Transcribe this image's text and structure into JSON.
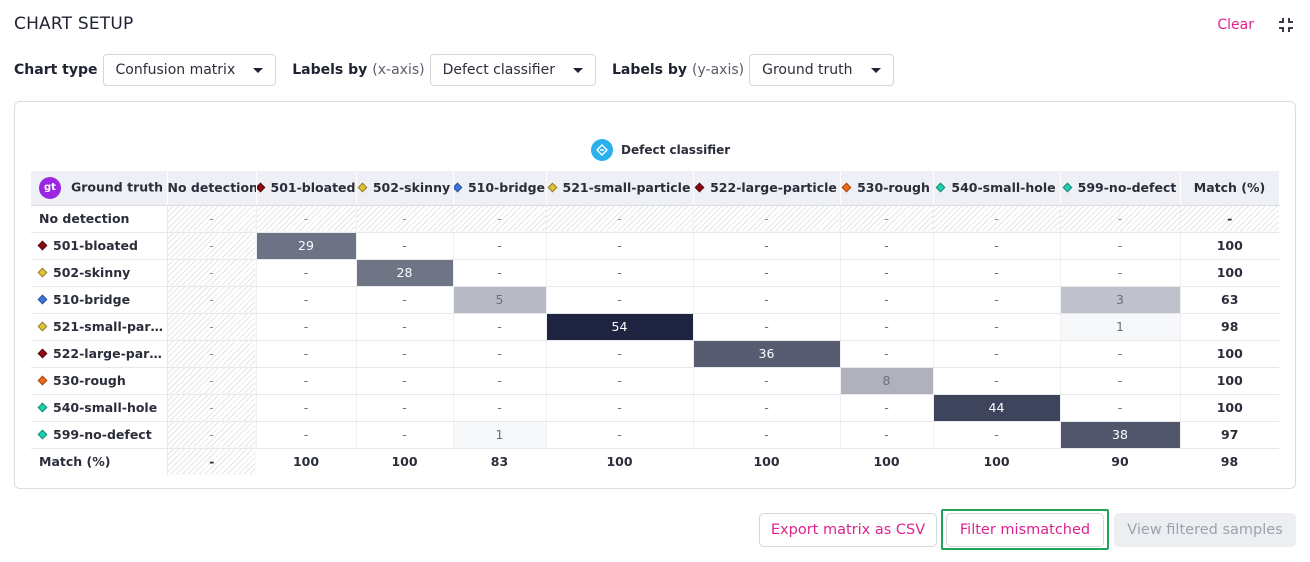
{
  "header": {
    "title": "CHART SETUP",
    "clear_label": "Clear"
  },
  "setup": {
    "chart_type_label": "Chart type",
    "chart_type_value": "Confusion matrix",
    "x_label": "Labels by",
    "x_sub": "(x-axis)",
    "x_value": "Defect classifier",
    "y_label": "Labels by",
    "y_sub": "(y-axis)",
    "y_value": "Ground truth"
  },
  "matrix": {
    "x_axis_title": "Defect classifier",
    "y_axis_badge": "gt",
    "y_axis_title": "Ground truth",
    "columns": [
      {
        "label": "No detection",
        "color": ""
      },
      {
        "label": "501-bloated",
        "color": "#8b0a14"
      },
      {
        "label": "502-skinny",
        "color": "#e0c23a"
      },
      {
        "label": "510-bridge",
        "color": "#3f74e3"
      },
      {
        "label": "521-small-particle",
        "color": "#e0c23a"
      },
      {
        "label": "522-large-particle",
        "color": "#8b0a14"
      },
      {
        "label": "530-rough",
        "color": "#f06a1a"
      },
      {
        "label": "540-small-hole",
        "color": "#1fd1b2"
      },
      {
        "label": "599-no-defect",
        "color": "#1fd1b2"
      }
    ],
    "match_header": "Match (%)",
    "rows": [
      {
        "label": "No detection",
        "color": "",
        "cells": [
          "-",
          "-",
          "-",
          "-",
          "-",
          "-",
          "-",
          "-",
          "-"
        ],
        "match": "-"
      },
      {
        "label": "501-bloated",
        "color": "#8b0a14",
        "cells": [
          "-",
          "29",
          "-",
          "-",
          "-",
          "-",
          "-",
          "-",
          "-"
        ],
        "match": "100"
      },
      {
        "label": "502-skinny",
        "color": "#e0c23a",
        "cells": [
          "-",
          "-",
          "28",
          "-",
          "-",
          "-",
          "-",
          "-",
          "-"
        ],
        "match": "100"
      },
      {
        "label": "510-bridge",
        "color": "#3f74e3",
        "cells": [
          "-",
          "-",
          "-",
          "5",
          "-",
          "-",
          "-",
          "-",
          "3"
        ],
        "match": "63"
      },
      {
        "label": "521-small-part...",
        "color": "#e0c23a",
        "cells": [
          "-",
          "-",
          "-",
          "-",
          "54",
          "-",
          "-",
          "-",
          "1"
        ],
        "match": "98"
      },
      {
        "label": "522-large-part...",
        "color": "#8b0a14",
        "cells": [
          "-",
          "-",
          "-",
          "-",
          "-",
          "36",
          "-",
          "-",
          "-"
        ],
        "match": "100"
      },
      {
        "label": "530-rough",
        "color": "#f06a1a",
        "cells": [
          "-",
          "-",
          "-",
          "-",
          "-",
          "-",
          "8",
          "-",
          "-"
        ],
        "match": "100"
      },
      {
        "label": "540-small-hole",
        "color": "#1fd1b2",
        "cells": [
          "-",
          "-",
          "-",
          "-",
          "-",
          "-",
          "-",
          "44",
          "-"
        ],
        "match": "100"
      },
      {
        "label": "599-no-defect",
        "color": "#1fd1b2",
        "cells": [
          "-",
          "-",
          "-",
          "1",
          "-",
          "-",
          "-",
          "-",
          "38"
        ],
        "match": "97"
      }
    ],
    "footer": {
      "label": "Match (%)",
      "cells": [
        "-",
        "100",
        "100",
        "83",
        "100",
        "100",
        "100",
        "100",
        "90"
      ],
      "match": "98"
    },
    "max_value": 54,
    "fill_dark": "#1f2540",
    "fill_light": "#e6e8ec"
  },
  "actions": {
    "export_label": "Export matrix as CSV",
    "filter_label": "Filter mismatched",
    "view_label": "View filtered samples"
  }
}
